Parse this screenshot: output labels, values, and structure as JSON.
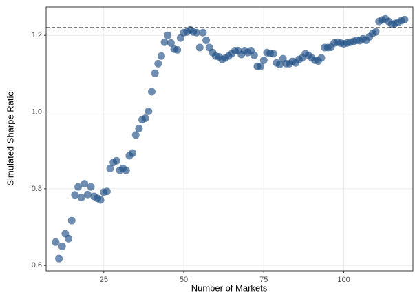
{
  "chart_data": {
    "type": "scatter",
    "x_label": "Number of Markets",
    "y_label": "Simulated Sharpe Ratio",
    "x": [
      10,
      11,
      12,
      13,
      14,
      15,
      16,
      17,
      18,
      19,
      20,
      21,
      22,
      23,
      24,
      25,
      26,
      27,
      28,
      29,
      30,
      31,
      32,
      33,
      34,
      35,
      36,
      37,
      38,
      39,
      40,
      41,
      42,
      43,
      44,
      45,
      46,
      47,
      48,
      49,
      50,
      51,
      52,
      53,
      54,
      55,
      56,
      57,
      58,
      59,
      60,
      61,
      62,
      63,
      64,
      65,
      66,
      67,
      68,
      69,
      70,
      71,
      72,
      73,
      74,
      75,
      76,
      77,
      78,
      79,
      80,
      81,
      82,
      83,
      84,
      85,
      86,
      87,
      88,
      89,
      90,
      91,
      92,
      93,
      94,
      95,
      96,
      97,
      98,
      99,
      100,
      101,
      102,
      103,
      104,
      105,
      106,
      107,
      108,
      109,
      110,
      111,
      112,
      113,
      114,
      115,
      116,
      117,
      118,
      119
    ],
    "values": [
      0.661,
      0.618,
      0.65,
      0.683,
      0.67,
      0.717,
      0.784,
      0.805,
      0.777,
      0.813,
      0.785,
      0.805,
      0.78,
      0.775,
      0.771,
      0.791,
      0.793,
      0.853,
      0.869,
      0.873,
      0.848,
      0.853,
      0.848,
      0.886,
      0.893,
      0.94,
      0.957,
      0.98,
      0.984,
      1.002,
      1.053,
      1.101,
      1.126,
      1.146,
      1.182,
      1.2,
      1.18,
      1.164,
      1.162,
      1.193,
      1.207,
      1.209,
      1.214,
      1.209,
      1.207,
      1.168,
      1.207,
      1.187,
      1.168,
      1.155,
      1.146,
      1.144,
      1.137,
      1.141,
      1.146,
      1.152,
      1.16,
      1.16,
      1.15,
      1.16,
      1.155,
      1.16,
      1.148,
      1.119,
      1.119,
      1.135,
      1.155,
      1.153,
      1.152,
      1.128,
      1.124,
      1.139,
      1.126,
      1.126,
      1.132,
      1.128,
      1.137,
      1.141,
      1.152,
      1.148,
      1.141,
      1.135,
      1.133,
      1.141,
      1.168,
      1.168,
      1.169,
      1.18,
      1.182,
      1.18,
      1.178,
      1.18,
      1.182,
      1.184,
      1.187,
      1.186,
      1.191,
      1.187,
      1.196,
      1.205,
      1.209,
      1.236,
      1.24,
      1.243,
      1.236,
      1.229,
      1.231,
      1.234,
      1.238,
      1.241
    ],
    "color": "#1f4e84",
    "hline": 1.22,
    "xlim": [
      7,
      121.6
    ],
    "ylim": [
      0.586,
      1.274
    ],
    "xticks": [
      25,
      50,
      75,
      100
    ],
    "yticks": [
      0.6,
      0.8,
      {
        "value": 1,
        "label": "1.0"
      },
      1.2
    ],
    "grid": true
  }
}
